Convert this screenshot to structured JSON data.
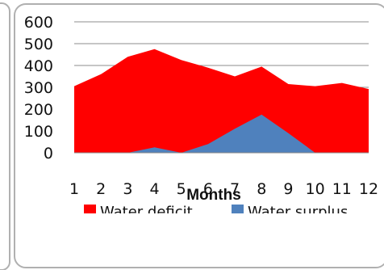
{
  "chart_data": {
    "type": "area",
    "stacked": false,
    "categories": [
      "1",
      "2",
      "3",
      "4",
      "5",
      "6",
      "7",
      "8",
      "9",
      "10",
      "11",
      "12"
    ],
    "series": [
      {
        "name": "Water deficit",
        "color": "#ff0000",
        "values": [
          305,
          360,
          440,
          475,
          425,
          390,
          350,
          395,
          315,
          305,
          320,
          292
        ]
      },
      {
        "name": "Water surplus",
        "color": "#4f81bd",
        "values": [
          0,
          0,
          0,
          25,
          0,
          40,
          110,
          175,
          90,
          0,
          0,
          0
        ]
      }
    ],
    "xlabel": "Months",
    "ylabel": "",
    "ylim": [
      0,
      600
    ],
    "yticks": [
      "0",
      "100",
      "200",
      "300",
      "400",
      "500",
      "600"
    ],
    "grid": true,
    "legend_position": "bottom"
  }
}
